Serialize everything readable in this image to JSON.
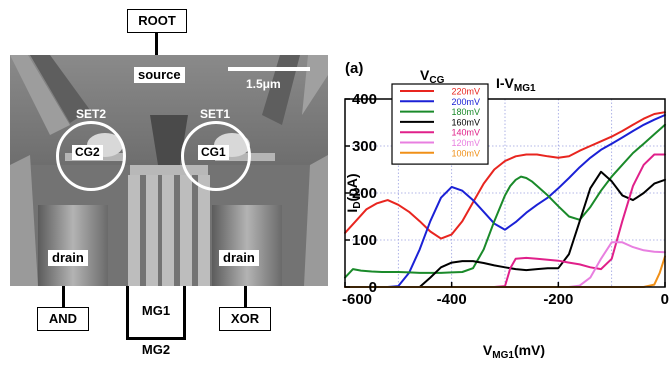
{
  "figure": {
    "root_label": "ROOT",
    "source_label": "source",
    "scale_label": "1.5μm",
    "set2_label": "SET2",
    "set1_label": "SET1",
    "cg2_label": "CG2",
    "cg1_label": "CG1",
    "drain_left_label": "drain",
    "drain_right_label": "drain",
    "and_label": "AND",
    "mg1_label": "MG1",
    "mg2_label": "MG2",
    "xor_label": "XOR"
  },
  "chart_data": {
    "type": "line",
    "panel_label": "(a)",
    "title": "I-V",
    "title_sub": "MG1",
    "legend_title": "V",
    "legend_title_sub": "CG",
    "xlabel": "V",
    "xlabel_sub": "MG1",
    "xlabel_unit": "(mV)",
    "ylabel": "I",
    "ylabel_sub": "D",
    "ylabel_unit": "(pA)",
    "xlim": [
      -600,
      0
    ],
    "ylim": [
      0,
      400
    ],
    "xticks": [
      -600,
      -400,
      -200,
      0
    ],
    "xtick_labels": [
      "-600",
      "-400",
      "-200",
      "0"
    ],
    "yticks": [
      0,
      100,
      200,
      300,
      400
    ],
    "ytick_labels": [
      "0",
      "100",
      "200",
      "300",
      "400"
    ],
    "grid": true,
    "legend_position": "top-left",
    "series": [
      {
        "name": "220mV",
        "color": "#e8251f",
        "x": [
          -600,
          -580,
          -560,
          -540,
          -520,
          -500,
          -480,
          -460,
          -440,
          -420,
          -400,
          -380,
          -360,
          -340,
          -320,
          -300,
          -280,
          -260,
          -240,
          -220,
          -200,
          -180,
          -160,
          -140,
          -120,
          -100,
          -80,
          -60,
          -40,
          -20,
          0
        ],
        "y": [
          115,
          140,
          165,
          178,
          185,
          175,
          160,
          140,
          118,
          103,
          112,
          140,
          180,
          220,
          250,
          268,
          278,
          282,
          282,
          278,
          275,
          278,
          290,
          300,
          310,
          320,
          332,
          345,
          358,
          368,
          372
        ]
      },
      {
        "name": "200mV",
        "color": "#1b21d6",
        "x": [
          -600,
          -580,
          -560,
          -540,
          -520,
          -500,
          -480,
          -460,
          -440,
          -420,
          -400,
          -380,
          -360,
          -340,
          -320,
          -300,
          -280,
          -260,
          -240,
          -220,
          -200,
          -180,
          -160,
          -140,
          -120,
          -100,
          -80,
          -60,
          -40,
          -20,
          0
        ],
        "y": [
          0,
          0,
          0,
          0,
          0,
          2,
          30,
          80,
          140,
          190,
          213,
          205,
          185,
          160,
          135,
          122,
          138,
          158,
          175,
          190,
          210,
          232,
          255,
          275,
          292,
          305,
          318,
          332,
          345,
          356,
          366
        ]
      },
      {
        "name": "180mV",
        "color": "#1a8a2a",
        "x": [
          -600,
          -585,
          -570,
          -550,
          -530,
          -500,
          -480,
          -460,
          -440,
          -420,
          -400,
          -380,
          -360,
          -340,
          -320,
          -300,
          -290,
          -280,
          -270,
          -260,
          -250,
          -240,
          -220,
          -200,
          -180,
          -160,
          -140,
          -120,
          -100,
          -80,
          -60,
          -40,
          -20,
          0
        ],
        "y": [
          20,
          38,
          35,
          33,
          32,
          32,
          31,
          30,
          30,
          30,
          31,
          32,
          40,
          80,
          140,
          195,
          215,
          228,
          235,
          232,
          225,
          215,
          195,
          172,
          150,
          143,
          170,
          205,
          235,
          260,
          285,
          305,
          325,
          345
        ]
      },
      {
        "name": "160mV",
        "color": "#000000",
        "x": [
          -600,
          -500,
          -460,
          -440,
          -420,
          -400,
          -380,
          -360,
          -340,
          -320,
          -300,
          -280,
          -260,
          -240,
          -220,
          -200,
          -180,
          -160,
          -140,
          -120,
          -100,
          -80,
          -60,
          -40,
          -20,
          0
        ],
        "y": [
          0,
          0,
          0,
          20,
          42,
          52,
          55,
          55,
          51,
          46,
          42,
          38,
          36,
          38,
          40,
          40,
          70,
          140,
          210,
          245,
          225,
          195,
          185,
          200,
          220,
          228
        ]
      },
      {
        "name": "140mV",
        "color": "#e0208a",
        "x": [
          -600,
          -320,
          -300,
          -290,
          -280,
          -260,
          -240,
          -220,
          -200,
          -180,
          -160,
          -140,
          -120,
          -100,
          -80,
          -60,
          -40,
          -20,
          0
        ],
        "y": [
          0,
          0,
          2,
          40,
          60,
          62,
          60,
          58,
          56,
          52,
          48,
          42,
          38,
          60,
          140,
          215,
          260,
          282,
          282
        ]
      },
      {
        "name": "120mV",
        "color": "#e87fe0",
        "x": [
          -600,
          -180,
          -160,
          -140,
          -120,
          -100,
          -80,
          -60,
          -40,
          -20,
          0
        ],
        "y": [
          0,
          0,
          3,
          20,
          60,
          95,
          95,
          85,
          78,
          75,
          74
        ]
      },
      {
        "name": "100mV",
        "color": "#f09018",
        "x": [
          -600,
          -40,
          -20,
          -10,
          0
        ],
        "y": [
          0,
          0,
          5,
          30,
          65
        ]
      }
    ]
  }
}
